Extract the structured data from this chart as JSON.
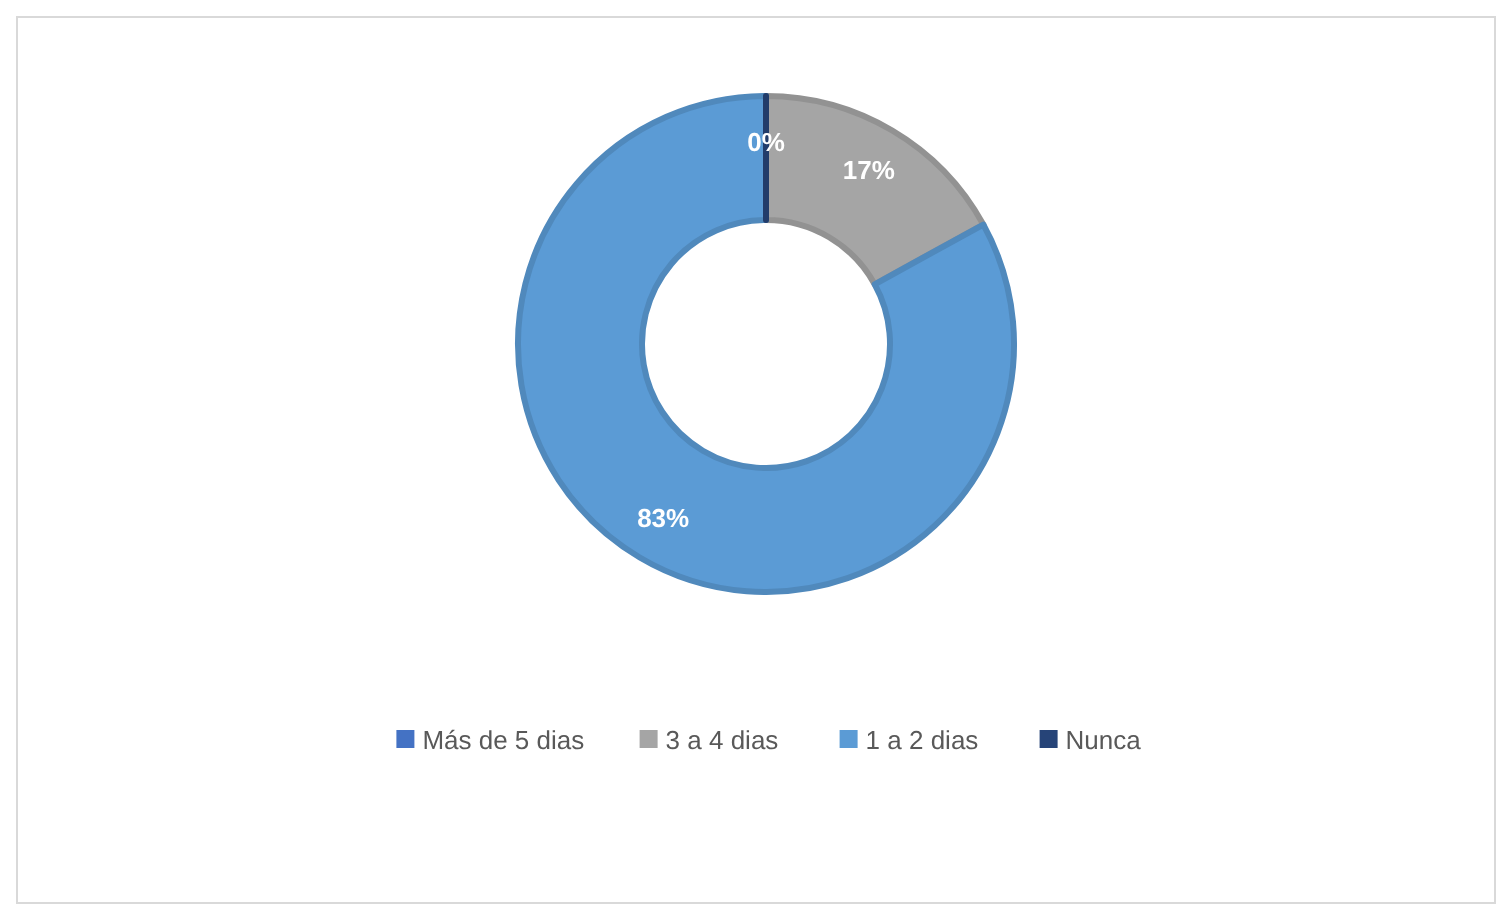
{
  "chart_data": {
    "type": "donut",
    "categories": [
      "Más de 5 dias",
      "3 a 4 dias",
      "1 a 2 dias",
      "Nunca"
    ],
    "values": [
      0,
      17,
      83,
      0
    ],
    "colors": [
      "#4472c4",
      "#a5a5a5",
      "#5b9bd5",
      "#264478"
    ],
    "value_labels": [
      "0%",
      "17%",
      "83%",
      null
    ],
    "legend": "bottom"
  }
}
